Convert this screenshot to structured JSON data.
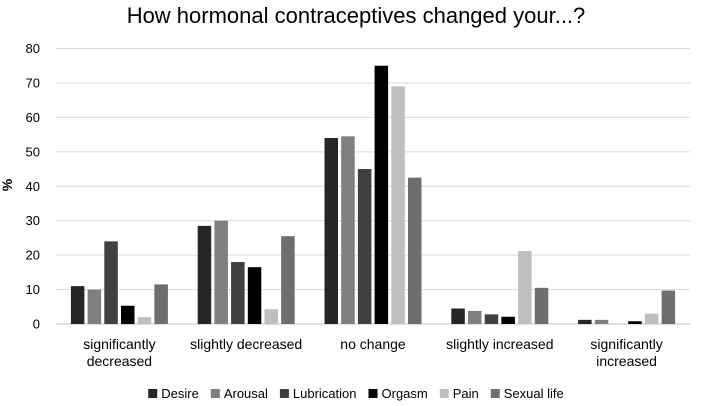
{
  "chart_data": {
    "type": "bar",
    "title": "How hormonal contraceptives changed your...?",
    "ylabel": "%",
    "xlabel": "",
    "ylim": [
      0,
      80
    ],
    "yticks": [
      0,
      10,
      20,
      30,
      40,
      50,
      60,
      70,
      80
    ],
    "grid": true,
    "legend_position": "bottom",
    "categories": [
      [
        "significantly",
        "decreased"
      ],
      [
        "slightly decreased"
      ],
      [
        "no change"
      ],
      [
        "slightly increased"
      ],
      [
        "significantly",
        "increased"
      ]
    ],
    "series": [
      {
        "name": "Desire",
        "color": "#262626",
        "values": [
          11,
          28.5,
          54,
          4.5,
          1.2
        ]
      },
      {
        "name": "Arousal",
        "color": "#7f7f7f",
        "values": [
          10,
          30,
          54.5,
          3.8,
          1.2
        ]
      },
      {
        "name": "Lubrication",
        "color": "#404040",
        "values": [
          24,
          18,
          45,
          2.8,
          0
        ]
      },
      {
        "name": "Orgasm",
        "color": "#000000",
        "values": [
          5.3,
          16.5,
          75,
          2.1,
          0.8
        ]
      },
      {
        "name": "Pain",
        "color": "#bfbfbf",
        "values": [
          2,
          4.3,
          69,
          21.2,
          3
        ]
      },
      {
        "name": "Sexual life",
        "color": "#6e6e6e",
        "values": [
          11.5,
          25.5,
          42.5,
          10.5,
          9.7
        ]
      }
    ]
  }
}
